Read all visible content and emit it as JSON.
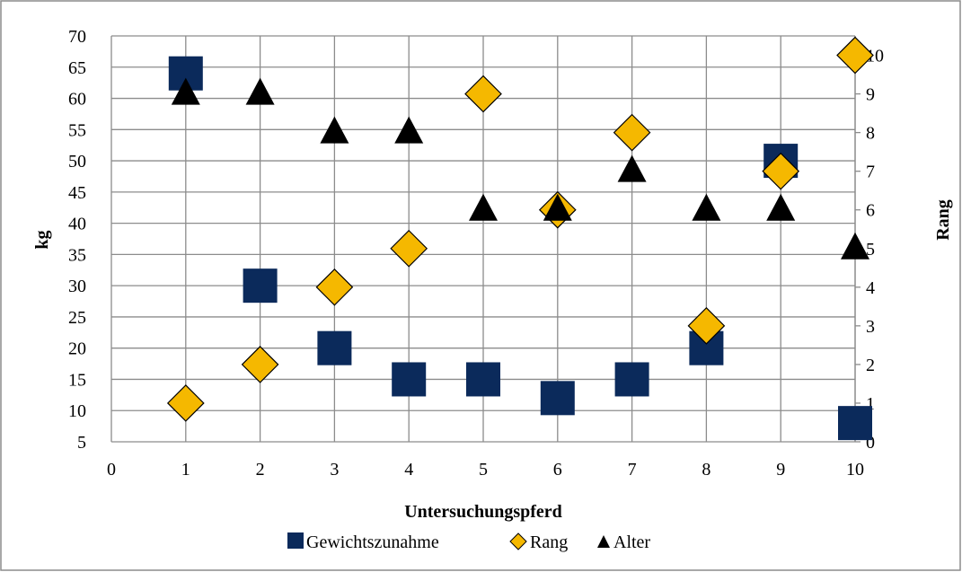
{
  "chart_data": {
    "type": "scatter",
    "title": "",
    "xlabel": "Untersuchungspferd",
    "ylabel": "kg",
    "y2label": "Rang",
    "xlim": [
      0,
      10
    ],
    "ylim": [
      5,
      70
    ],
    "y2lim": [
      0,
      10.5
    ],
    "x_ticks": [
      "0",
      "1",
      "2",
      "3",
      "4",
      "5",
      "6",
      "7",
      "8",
      "9",
      "10"
    ],
    "y_ticks": [
      "5",
      "10",
      "15",
      "20",
      "25",
      "30",
      "35",
      "40",
      "45",
      "50",
      "55",
      "60",
      "65",
      "70"
    ],
    "y2_ticks": [
      "0",
      "1",
      "2",
      "3",
      "4",
      "5",
      "6",
      "7",
      "8",
      "9",
      "10"
    ],
    "grid": true,
    "legend_position": "bottom",
    "series": [
      {
        "name": "Gewichtszunahme",
        "axis": "left",
        "marker": "square",
        "color": "#0b2a5b",
        "x": [
          1,
          2,
          3,
          4,
          5,
          6,
          7,
          8,
          9,
          10
        ],
        "y": [
          64,
          30,
          20,
          15,
          15,
          12,
          15,
          20,
          50,
          8
        ]
      },
      {
        "name": "Rang",
        "axis": "right",
        "marker": "diamond",
        "color": "#f5b800",
        "x": [
          1,
          2,
          3,
          4,
          5,
          6,
          7,
          8,
          9,
          10
        ],
        "y": [
          1,
          2,
          4,
          5,
          9,
          6,
          8,
          3,
          7,
          10
        ]
      },
      {
        "name": "Alter",
        "axis": "right",
        "marker": "triangle",
        "color": "#000000",
        "x": [
          1,
          2,
          3,
          4,
          5,
          6,
          7,
          8,
          9,
          10
        ],
        "y": [
          9,
          9,
          8,
          8,
          6,
          6,
          7,
          6,
          6,
          5
        ]
      }
    ]
  }
}
